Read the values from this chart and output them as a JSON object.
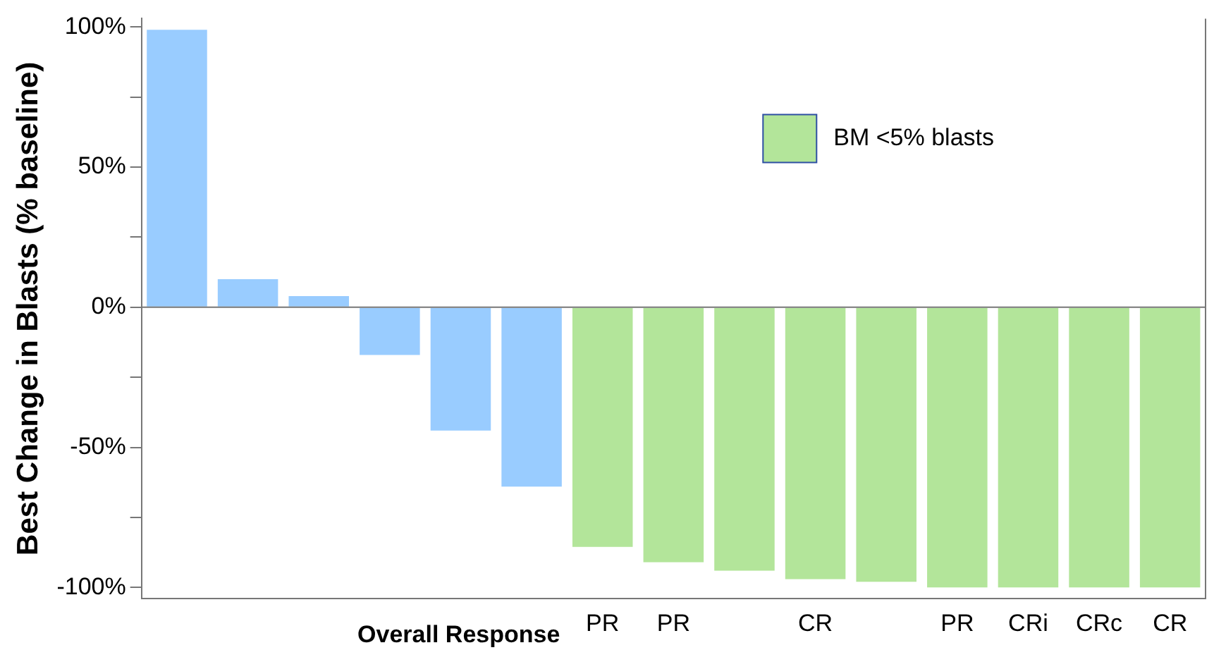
{
  "chart_data": {
    "type": "bar",
    "ylabel": "Best Change in Blasts (% baseline)",
    "xlabel": "Overall Response",
    "categories": [
      null,
      null,
      null,
      null,
      null,
      null,
      "PR",
      "PR",
      null,
      "CR",
      null,
      "PR",
      "CRi",
      "CRc",
      "CR"
    ],
    "series": [
      {
        "color": "#99ccff",
        "values": [
          99,
          10,
          4,
          -17,
          -44,
          -64,
          null,
          null,
          null,
          null,
          null,
          null,
          null,
          null,
          null
        ]
      },
      {
        "name": "BM <5% blasts",
        "color": "#b3e59a",
        "values": [
          null,
          null,
          null,
          null,
          null,
          null,
          -85.5,
          -91,
          -94,
          -97,
          -98,
          -100,
          -100,
          -100,
          -100
        ]
      }
    ],
    "ylim": [
      -104,
      103
    ],
    "yticks": [
      {
        "value": -100,
        "label": "-100%"
      },
      {
        "value": -75,
        "label": null
      },
      {
        "value": -50,
        "label": "-50%"
      },
      {
        "value": -25,
        "label": null
      },
      {
        "value": 0,
        "label": "0%"
      },
      {
        "value": 25,
        "label": null
      },
      {
        "value": 50,
        "label": "50%"
      },
      {
        "value": 75,
        "label": null
      },
      {
        "value": 100,
        "label": "100%"
      }
    ],
    "ref_lines": [
      {
        "axis": "y",
        "value": 0
      }
    ],
    "legend": "top right",
    "grid": false
  }
}
